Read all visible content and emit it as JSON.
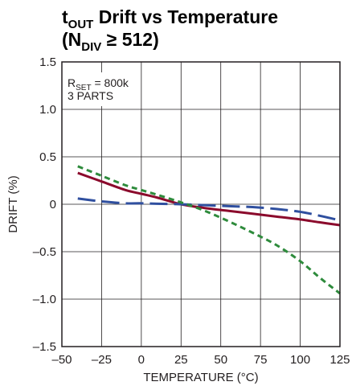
{
  "chart_data": {
    "type": "line",
    "title": {
      "line1_main": "t",
      "line1_sub": "OUT",
      "line1_rest": " Drift vs Temperature",
      "line2_open": "(N",
      "line2_sub": "DIV",
      "line2_rest": " ≥ 512)"
    },
    "xlabel": "TEMPERATURE (°C)",
    "ylabel": "DRIFT (%)",
    "xlim": [
      -50,
      125
    ],
    "ylim": [
      -1.5,
      1.5
    ],
    "xticks": [
      -50,
      -25,
      0,
      25,
      50,
      75,
      100,
      125
    ],
    "xtick_labels": [
      "–50",
      "–25",
      "0",
      "25",
      "50",
      "75",
      "100",
      "125"
    ],
    "yticks": [
      1.5,
      1.0,
      0.5,
      0,
      -0.5,
      -1.0,
      -1.5
    ],
    "ytick_labels": [
      "1.5",
      "1.0",
      "0.5",
      "0",
      "–0.5",
      "–1.0",
      "–1.5"
    ],
    "grid": true,
    "annotation": {
      "line1_main": "R",
      "line1_sub": "SET",
      "line1_rest": " = 800k",
      "line2": "3 PARTS"
    },
    "series": [
      {
        "style": "solid",
        "color": "#8b0a2c",
        "x": [
          -40,
          -25,
          -10,
          0,
          10,
          25,
          40,
          55,
          70,
          85,
          100,
          112,
          125
        ],
        "y": [
          0.33,
          0.24,
          0.15,
          0.11,
          0.07,
          0.0,
          -0.04,
          -0.07,
          -0.1,
          -0.13,
          -0.16,
          -0.19,
          -0.22
        ]
      },
      {
        "style": "dashed",
        "color": "#2f4f9f",
        "x": [
          -40,
          -25,
          -10,
          0,
          10,
          25,
          40,
          55,
          70,
          85,
          100,
          112,
          125
        ],
        "y": [
          0.06,
          0.03,
          0.01,
          0.01,
          0.005,
          0.0,
          -0.01,
          -0.02,
          -0.03,
          -0.05,
          -0.08,
          -0.12,
          -0.17
        ]
      },
      {
        "style": "dotted",
        "color": "#2e8b3c",
        "x": [
          -40,
          -25,
          -10,
          0,
          10,
          25,
          40,
          55,
          70,
          85,
          100,
          112,
          125
        ],
        "y": [
          0.4,
          0.3,
          0.2,
          0.15,
          0.1,
          0.02,
          -0.07,
          -0.18,
          -0.3,
          -0.43,
          -0.6,
          -0.77,
          -0.94
        ]
      }
    ]
  }
}
